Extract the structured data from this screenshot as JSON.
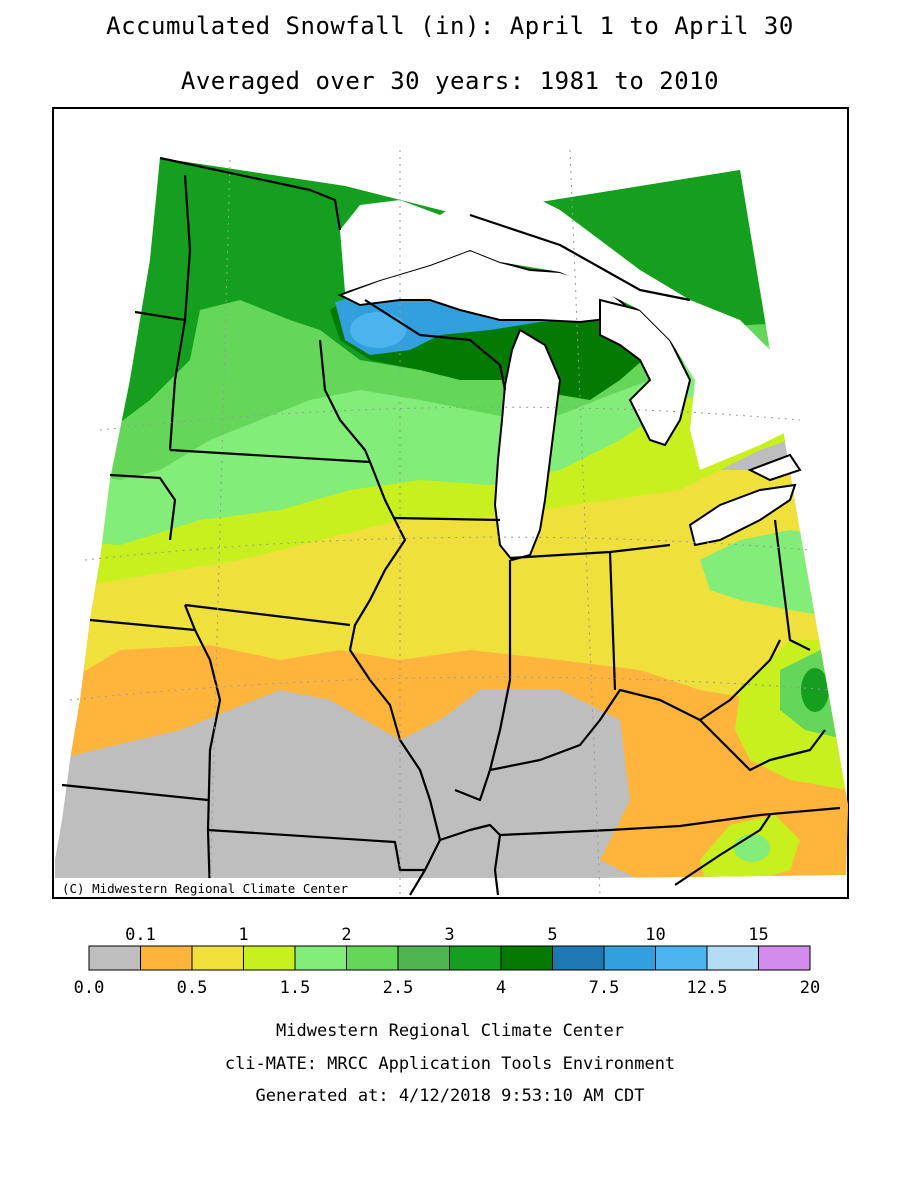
{
  "title": "Accumulated Snowfall (in): April 1 to April 30",
  "subtitle": "Averaged over 30 years: 1981 to 2010",
  "copyright": "(C) Midwestern Regional Climate Center",
  "legend": {
    "top_labels": [
      "0.1",
      "1",
      "2",
      "3",
      "5",
      "10",
      "15"
    ],
    "bottom_labels": [
      "0.0",
      "0.5",
      "1.5",
      "2.5",
      "4",
      "7.5",
      "12.5",
      "20"
    ],
    "colors": [
      "#bebebe",
      "#ffb43c",
      "#f0e03c",
      "#c8f01e",
      "#82ed78",
      "#64d75a",
      "#50b450",
      "#14a01e",
      "#037b03",
      "#1e78b4",
      "#32a0dc",
      "#4bb4ee",
      "#b4dcf5",
      "#d48cec"
    ]
  },
  "regions": {
    "gray": "#bebebe",
    "orange": "#ffb43c",
    "yellow": "#f0e03c",
    "yellowgreen": "#c8f01e",
    "lightgreen": "#82ed78",
    "green": "#64d75a",
    "midgreen": "#50b450",
    "darkgreen": "#14a01e",
    "darkestgreen": "#037b03",
    "blue": "#32a0dc",
    "lightblue": "#4bb4ee"
  },
  "footer": {
    "line1": "Midwestern Regional Climate Center",
    "line2": "cli-MATE: MRCC Application Tools Environment",
    "line3": "Generated at: 4/12/2018 9:53:10 AM CDT"
  }
}
